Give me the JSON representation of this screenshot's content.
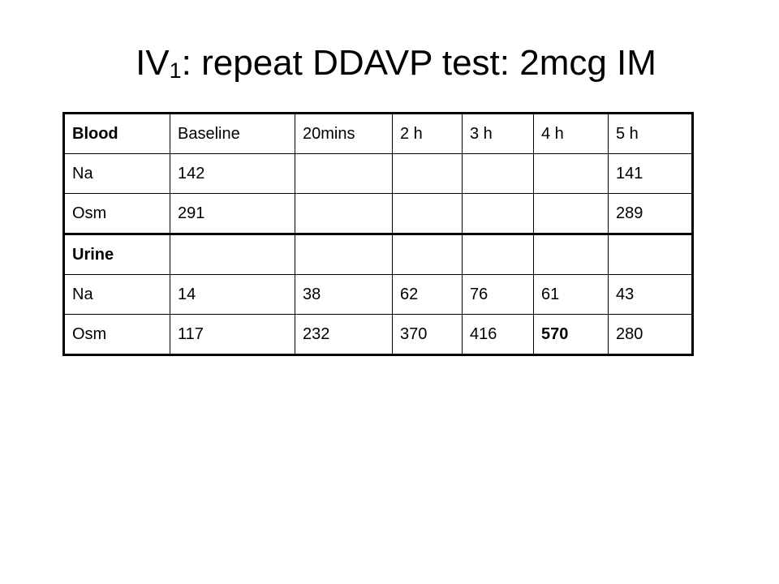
{
  "slide": {
    "title": {
      "prefix": "IV",
      "subscript": "1",
      "suffix": ": repeat DDAVP test: 2mcg IM"
    }
  },
  "table": {
    "rows": [
      [
        "Blood",
        "Baseline",
        "20mins",
        "2 h",
        "3 h",
        "4 h",
        "5 h"
      ],
      [
        "Na",
        "142",
        "",
        "",
        "",
        "",
        "141"
      ],
      [
        "Osm",
        "291",
        "",
        "",
        "",
        "",
        "289"
      ],
      [
        "Urine",
        "",
        "",
        "",
        "",
        "",
        ""
      ],
      [
        "Na",
        "14",
        "38",
        "62",
        "76",
        "61",
        "43"
      ],
      [
        "Osm",
        "117",
        "232",
        "370",
        "416",
        "570",
        "280"
      ]
    ]
  }
}
